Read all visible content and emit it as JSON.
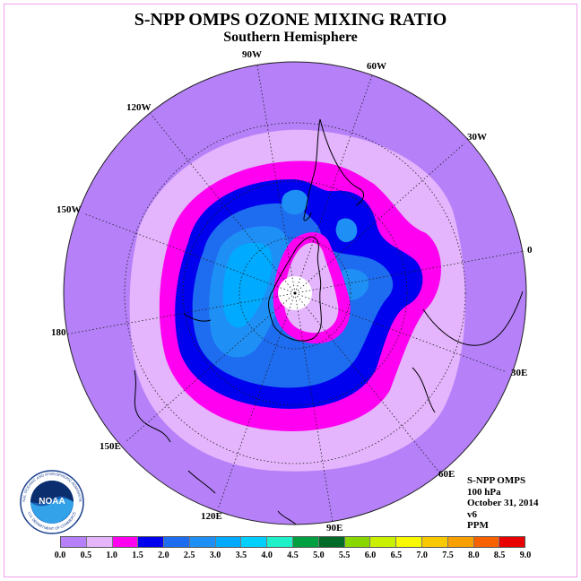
{
  "title": "S-NPP OMPS OZONE MIXING RATIO",
  "subtitle": "Southern Hemisphere",
  "longitude_labels": [
    "90W",
    "60W",
    "30W",
    "0",
    "30E",
    "60E",
    "90E",
    "120E",
    "150E",
    "180",
    "150W",
    "120W"
  ],
  "info": {
    "instrument": "S-NPP OMPS",
    "level": "100 hPa",
    "date": "October 31, 2014",
    "version": "v6",
    "units": "PPM"
  },
  "logo": {
    "text": "NOAA",
    "ring_text": "NATIONAL OCEANIC AND ATMOSPHERIC ADMINISTRATION",
    "bottom_text": "U.S. DEPARTMENT OF COMMERCE"
  },
  "colorbar": {
    "ticks": [
      "0.0",
      "0.5",
      "1.0",
      "1.5",
      "2.0",
      "2.5",
      "3.0",
      "3.5",
      "4.0",
      "4.5",
      "5.0",
      "5.5",
      "6.0",
      "6.5",
      "7.0",
      "7.5",
      "8.0",
      "8.5",
      "9.0"
    ],
    "colors": [
      "#b580f8",
      "#e4b4fc",
      "#ff00f0",
      "#0000ee",
      "#1e6cf0",
      "#1e8ff5",
      "#00aaff",
      "#00cfff",
      "#1ef0c8",
      "#00a040",
      "#006a28",
      "#88d800",
      "#c8f000",
      "#f8f800",
      "#f8c800",
      "#f8a000",
      "#f86000",
      "#e80000",
      "#8c5a3c"
    ]
  },
  "map_colors": {
    "c_0_05": "#b580f8",
    "c_05_1": "#e4b4fc",
    "c_1_15": "#ff00f0",
    "c_15_2": "#0000ee",
    "c_2_25": "#1e6cf0",
    "c_25_3": "#1e8ff5",
    "c_3_35": "#00aaff",
    "missing": "#ffffff"
  }
}
